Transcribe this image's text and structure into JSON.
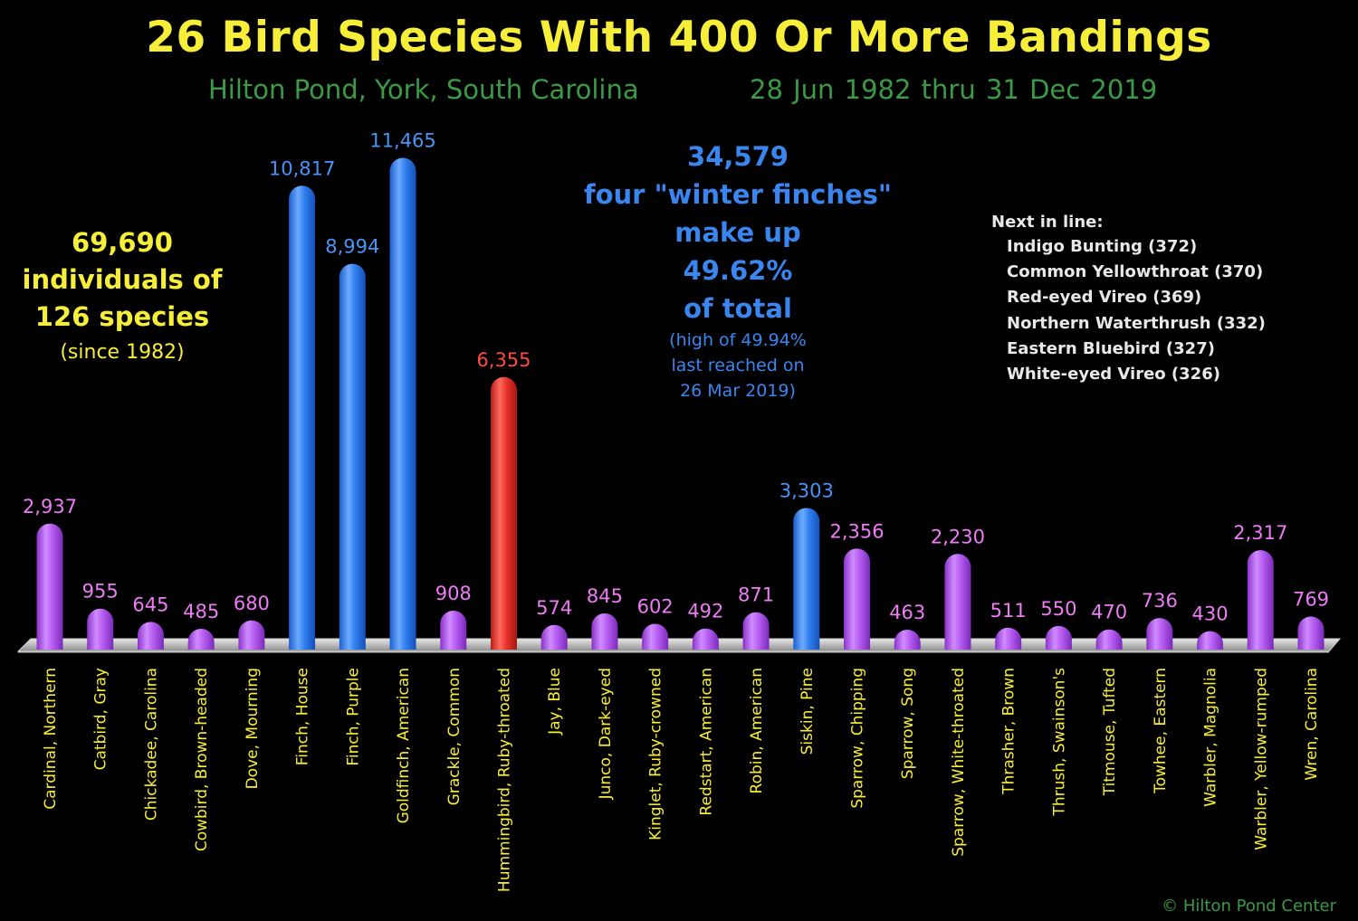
{
  "title": "26 Bird Species With 400 Or More Bandings",
  "location": "Hilton Pond, York, South Carolina",
  "dates": "28 Jun 1982 thru  31 Dec 2019",
  "summary": {
    "line1": "69,690",
    "line2": "individuals of",
    "line3": "126 species",
    "line4": "(since 1982)"
  },
  "finches_note": {
    "line1": "34,579",
    "line2": "four \"winter finches\"",
    "line3": "make up",
    "line4": "49.62%",
    "line5": "of total",
    "line6": "(high of 49.94%",
    "line7": "last reached on",
    "line8": "26 Mar 2019)"
  },
  "next_in_line": {
    "heading": "Next in line:",
    "items": [
      "Indigo Bunting (372)",
      "Common Yellowthroat (370)",
      "Red-eyed Vireo (369)",
      "Northern Waterthrush (332)",
      "Eastern Bluebird (327)",
      "White-eyed Vireo (326)"
    ]
  },
  "copyright": "© Hilton Pond Center",
  "colors": {
    "background": "#000000",
    "title": "#f7ee3a",
    "subtitle": "#3a9a45",
    "default_bar": "#b65cf2",
    "finch_bar": "#2f7ff0",
    "hummingbird_bar": "#e8332b",
    "category_label": "#f7ee3a",
    "next_in_line_text": "#e8e8e8"
  },
  "chart_data": {
    "type": "bar",
    "title": "26 Bird Species With 400 Or More Bandings",
    "xlabel": "",
    "ylabel": "",
    "grid": false,
    "categories": [
      "Cardinal, Northern",
      "Catbird, Gray",
      "Chickadee, Carolina",
      "Cowbird, Brown-headed",
      "Dove, Mourning",
      "Finch, House",
      "Finch, Purple",
      "Goldfinch, American",
      "Grackle, Common",
      "Hummingbird, Ruby-throated",
      "Jay, Blue",
      "Junco, Dark-eyed",
      "Kinglet, Ruby-crowned",
      "Redstart, American",
      "Robin, American",
      "Siskin, Pine",
      "Sparrow, Chipping",
      "Sparrow, Song",
      "Sparrow, White-throated",
      "Thrasher, Brown",
      "Thrush, Swainson's",
      "Titmouse, Tufted",
      "Towhee, Eastern",
      "Warbler, Magnolia",
      "Warbler, Yellow-rumped",
      "Wren, Carolina"
    ],
    "values": [
      2937,
      955,
      645,
      485,
      680,
      10817,
      8994,
      11465,
      908,
      6355,
      574,
      845,
      602,
      492,
      871,
      3303,
      2356,
      463,
      2230,
      511,
      550,
      470,
      736,
      430,
      2317,
      769
    ],
    "value_labels": [
      "2,937",
      "955",
      "645",
      "485",
      "680",
      "10,817",
      "8,994",
      "11,465",
      "908",
      "6,355",
      "574",
      "845",
      "602",
      "492",
      "871",
      "3,303",
      "2,356",
      "463",
      "2,230",
      "511",
      "550",
      "470",
      "736",
      "430",
      "2,317",
      "769"
    ],
    "bar_colors": [
      "#b65cf2",
      "#b65cf2",
      "#b65cf2",
      "#b65cf2",
      "#b65cf2",
      "#2f7ff0",
      "#2f7ff0",
      "#2f7ff0",
      "#b65cf2",
      "#e8332b",
      "#b65cf2",
      "#b65cf2",
      "#b65cf2",
      "#b65cf2",
      "#b65cf2",
      "#2f7ff0",
      "#b65cf2",
      "#b65cf2",
      "#b65cf2",
      "#b65cf2",
      "#b65cf2",
      "#b65cf2",
      "#b65cf2",
      "#b65cf2",
      "#b65cf2",
      "#b65cf2"
    ],
    "label_colors": [
      "#ee7cf5",
      "#ee7cf5",
      "#ee7cf5",
      "#ee7cf5",
      "#ee7cf5",
      "#4b93f5",
      "#4b93f5",
      "#4b93f5",
      "#ee7cf5",
      "#ff4a3d",
      "#ee7cf5",
      "#ee7cf5",
      "#ee7cf5",
      "#ee7cf5",
      "#ee7cf5",
      "#4b93f5",
      "#ee7cf5",
      "#ee7cf5",
      "#ee7cf5",
      "#ee7cf5",
      "#ee7cf5",
      "#ee7cf5",
      "#ee7cf5",
      "#ee7cf5",
      "#ee7cf5",
      "#ee7cf5"
    ]
  }
}
